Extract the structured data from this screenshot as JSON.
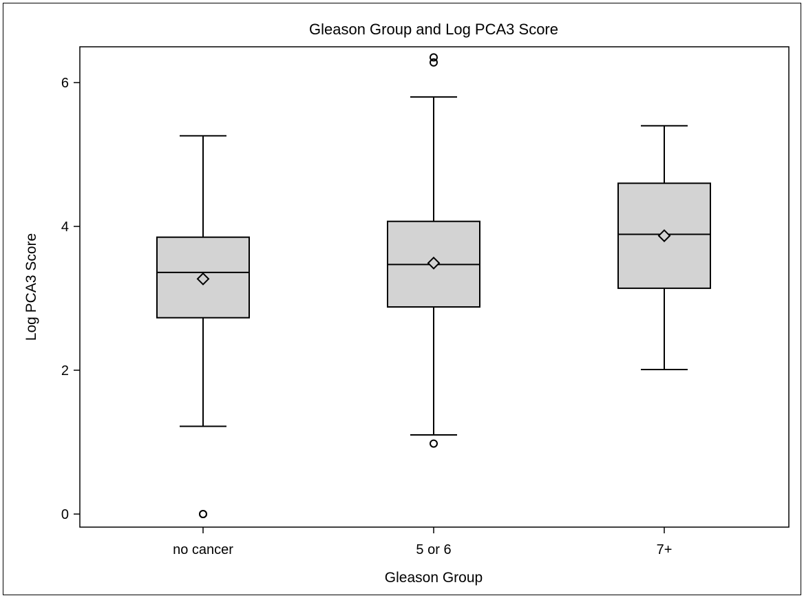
{
  "chart_data": {
    "type": "box",
    "title": "Gleason Group and Log PCA3 Score",
    "xlabel": "Gleason Group",
    "ylabel": "Log PCA3 Score",
    "ylim": [
      -0.2,
      6.5
    ],
    "yticks": [
      0,
      2,
      4,
      6
    ],
    "categories": [
      "no cancer",
      "5 or 6",
      "7+"
    ],
    "boxes": [
      {
        "category": "no cancer",
        "whisker_low": 1.22,
        "q1": 2.73,
        "median": 3.36,
        "q3": 3.85,
        "whisker_high": 5.26,
        "mean": 3.27,
        "outliers": [
          0.0,
          0.0
        ]
      },
      {
        "category": "5 or 6",
        "whisker_low": 1.1,
        "q1": 2.88,
        "median": 3.47,
        "q3": 4.07,
        "whisker_high": 5.8,
        "mean": 3.49,
        "outliers": [
          0.98,
          6.28,
          6.35
        ]
      },
      {
        "category": "7+",
        "whisker_low": 2.01,
        "q1": 3.14,
        "median": 3.89,
        "q3": 4.6,
        "whisker_high": 5.4,
        "mean": 3.87,
        "outliers": []
      }
    ],
    "colors": {
      "box_fill": "#d3d3d3",
      "stroke": "#000000"
    },
    "grid": false,
    "legend": "none"
  }
}
